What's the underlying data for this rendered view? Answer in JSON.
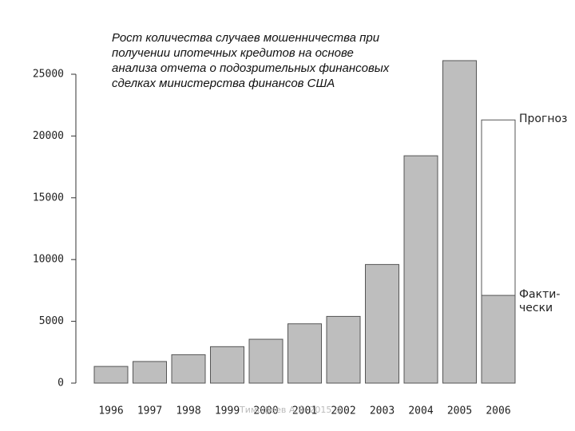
{
  "chart_data": {
    "type": "bar",
    "title": "Рост количества случаев мошенничества при\nполучении ипотечных кредитов на основе\nанализа отчета о подозрительных финансовых\nсделках министерства финансов США",
    "categories": [
      "1996",
      "1997",
      "1998",
      "1999",
      "2000",
      "2001",
      "2002",
      "2003",
      "2004",
      "2005",
      "2006"
    ],
    "series": [
      {
        "name": "Прогноз",
        "color": "#ffffff",
        "values": [
          null,
          null,
          null,
          null,
          null,
          null,
          null,
          null,
          null,
          null,
          21300
        ]
      },
      {
        "name": "Факти-\nчески",
        "color": "#bebebe",
        "values": [
          1350,
          1750,
          2300,
          2950,
          3550,
          4800,
          5400,
          9600,
          18400,
          26100,
          7100
        ]
      }
    ],
    "ylim": [
      0,
      26500
    ],
    "yticks": [
      0,
      5000,
      10000,
      15000,
      20000,
      25000
    ],
    "footer": "Тимофеев А.В. 2015 ©"
  }
}
